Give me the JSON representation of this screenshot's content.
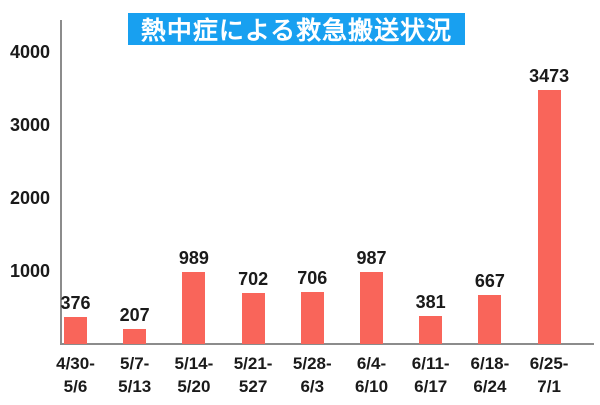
{
  "chart_data": {
    "type": "bar",
    "title": "熱中症による救急搬送状況",
    "categories": [
      [
        "4/30-",
        "5/6"
      ],
      [
        "5/7-",
        "5/13"
      ],
      [
        "5/14-",
        "5/20"
      ],
      [
        "5/21-",
        "527"
      ],
      [
        "5/28-",
        "6/3"
      ],
      [
        "6/4-",
        "6/10"
      ],
      [
        "6/11-",
        "6/17"
      ],
      [
        "6/18-",
        "6/24"
      ],
      [
        "6/25-",
        "7/1"
      ]
    ],
    "values": [
      376,
      207,
      989,
      702,
      706,
      987,
      381,
      667,
      3473
    ],
    "value_labels": [
      "376",
      "207",
      "989",
      "702",
      "706",
      "987",
      "381",
      "667",
      "3473"
    ],
    "y_ticks": [
      1000,
      2000,
      3000,
      4000
    ],
    "y_tick_labels": [
      "1000",
      "2000",
      "3000",
      "4000"
    ],
    "ylim": [
      0,
      4100
    ],
    "xlabel": "",
    "ylabel": "",
    "grid": false,
    "legend": "none",
    "colors": {
      "bar": "#F9655A",
      "title_background": "#18A0F0",
      "title_text": "#FFFFFF",
      "axis_line": "#8C8C8C",
      "tick_text": "#1A1A1A"
    }
  }
}
